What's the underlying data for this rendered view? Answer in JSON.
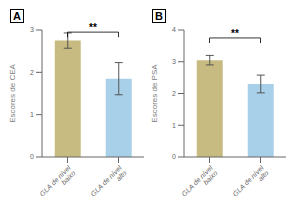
{
  "chart_data": [
    {
      "type": "bar",
      "title": "A",
      "ylabel": "Escores de CEA",
      "categories": [
        "GLA de nível baixo",
        "GLA de nível alto"
      ],
      "values": [
        2.75,
        1.85
      ],
      "errors": [
        0.18,
        0.38
      ],
      "colors": [
        "#c8bb82",
        "#a8d0e8"
      ],
      "ylim": [
        0,
        3
      ],
      "yticks": [
        0,
        1,
        2,
        3
      ],
      "grid": false,
      "annotations": [
        {
          "text": "**",
          "y": 2.95,
          "from": "GLA de nível baixo",
          "to": "GLA de nível alto"
        }
      ]
    },
    {
      "type": "bar",
      "title": "B",
      "ylabel": "Escores de PSA",
      "categories": [
        "GLA de nível baixo",
        "GLA de nível alto"
      ],
      "values": [
        3.05,
        2.3
      ],
      "errors": [
        0.15,
        0.28
      ],
      "colors": [
        "#c8bb82",
        "#a8d0e8"
      ],
      "ylim": [
        0,
        4
      ],
      "yticks": [
        0,
        1,
        2,
        3,
        4
      ],
      "grid": false,
      "annotations": [
        {
          "text": "**",
          "y": 3.75,
          "from": "GLA de nível baixo",
          "to": "GLA de nível alto"
        }
      ]
    }
  ]
}
